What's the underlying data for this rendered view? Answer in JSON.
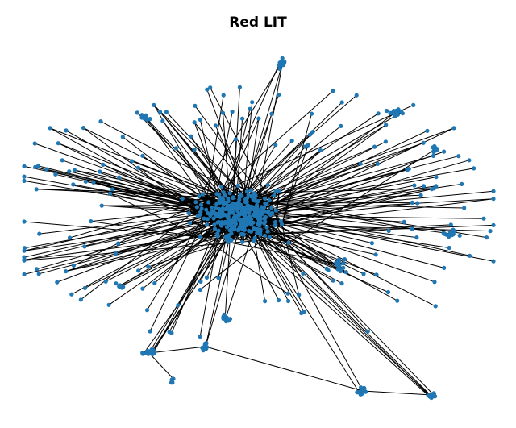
{
  "title": "Red LIT",
  "diagram": {
    "type": "network-graph",
    "node_color": "#1f77b4",
    "edge_color": "#000000",
    "background": "#ffffff",
    "axes_visible": false,
    "grid": false,
    "legend": false
  }
}
